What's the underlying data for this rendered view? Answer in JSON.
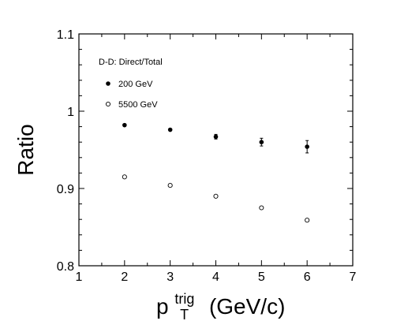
{
  "chart_data": {
    "type": "scatter",
    "ylabel": "Ratio",
    "xlabel": {
      "base": "p",
      "superscript": "trig",
      "subscript": "T",
      "unit": "(GeV/c)"
    },
    "xlim": [
      1,
      7
    ],
    "ylim": [
      0.8,
      1.1
    ],
    "x_ticks": [
      "1",
      "2",
      "3",
      "4",
      "5",
      "6",
      "7"
    ],
    "y_ticks": [
      "0.8",
      "0.9",
      "1",
      "1.1"
    ],
    "grid": false,
    "legend": {
      "title": "D-D: Direct/Total",
      "placement": "top-left",
      "entries": [
        "200 GeV",
        "5500 GeV"
      ]
    },
    "series": [
      {
        "name": "200 GeV",
        "marker": "filled-circle",
        "x": [
          2,
          3,
          4,
          5,
          6
        ],
        "y": [
          0.982,
          0.976,
          0.967,
          0.96,
          0.954
        ],
        "yerr": [
          0.001,
          0.001,
          0.003,
          0.005,
          0.008
        ]
      },
      {
        "name": "5500 GeV",
        "marker": "open-circle",
        "x": [
          2,
          3,
          4,
          5,
          6
        ],
        "y": [
          0.915,
          0.904,
          0.89,
          0.875,
          0.859
        ],
        "yerr": [
          0,
          0,
          0,
          0,
          0
        ]
      }
    ]
  }
}
